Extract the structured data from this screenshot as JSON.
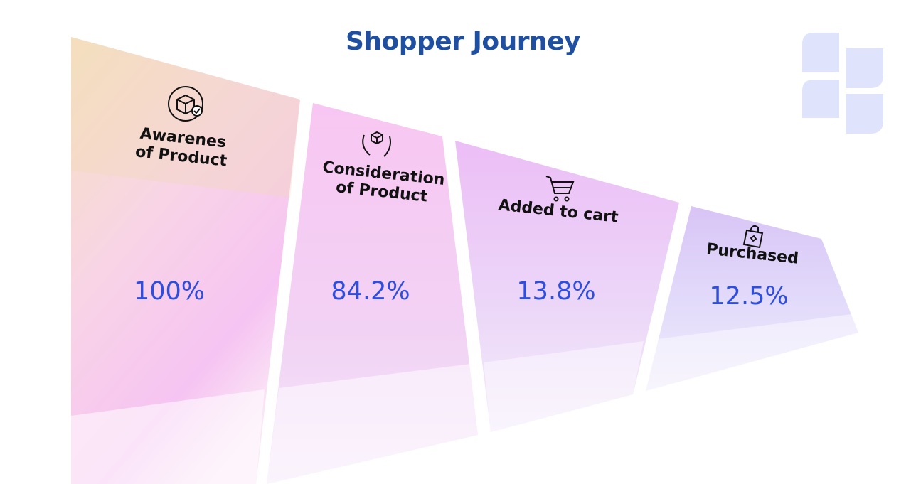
{
  "title": "Shopper Journey",
  "stages": [
    {
      "label": "Awarenes of Product",
      "value": "100%"
    },
    {
      "label": "Consideration of Product",
      "value": "84.2%"
    },
    {
      "label": "Added to cart",
      "value": "13.8%"
    },
    {
      "label": "Purchased",
      "value": "12.5%"
    }
  ]
}
